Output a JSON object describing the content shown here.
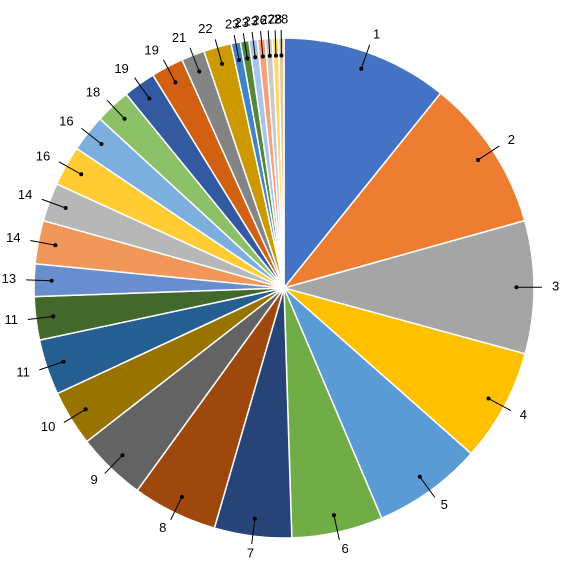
{
  "chart_data": {
    "type": "pie",
    "categories": [
      "1",
      "2",
      "3",
      "4",
      "5",
      "6",
      "7",
      "8",
      "9",
      "10",
      "11",
      "11",
      "13",
      "14",
      "14",
      "16",
      "16",
      "18",
      "19",
      "19",
      "21",
      "22",
      "23",
      "23",
      "23",
      "26",
      "27",
      "28",
      "28"
    ],
    "values": [
      10.8,
      9.9,
      8.6,
      7.3,
      7.1,
      5.9,
      5.0,
      5.5,
      4.5,
      3.6,
      3.6,
      2.8,
      2.1,
      2.8,
      2.5,
      2.6,
      2.4,
      2.3,
      2.1,
      2.1,
      1.5,
      1.8,
      0.6,
      0.55,
      0.55,
      0.5,
      0.45,
      0.4,
      0.35
    ],
    "colors": [
      "#4472c4",
      "#ed7d31",
      "#a5a5a5",
      "#ffc000",
      "#5b9bd5",
      "#70ad47",
      "#264478",
      "#9e480e",
      "#636363",
      "#997300",
      "#255e91",
      "#43682b",
      "#698ed0",
      "#f1975a",
      "#b7b7b7",
      "#ffcd33",
      "#7cafdd",
      "#8cc168",
      "#335aa1",
      "#d26012",
      "#848484",
      "#cc9a00",
      "#3f83c9",
      "#55863a",
      "#a9c4e8",
      "#f4a07a",
      "#c9c9c9",
      "#ffd966",
      "#e2c9a0"
    ]
  }
}
